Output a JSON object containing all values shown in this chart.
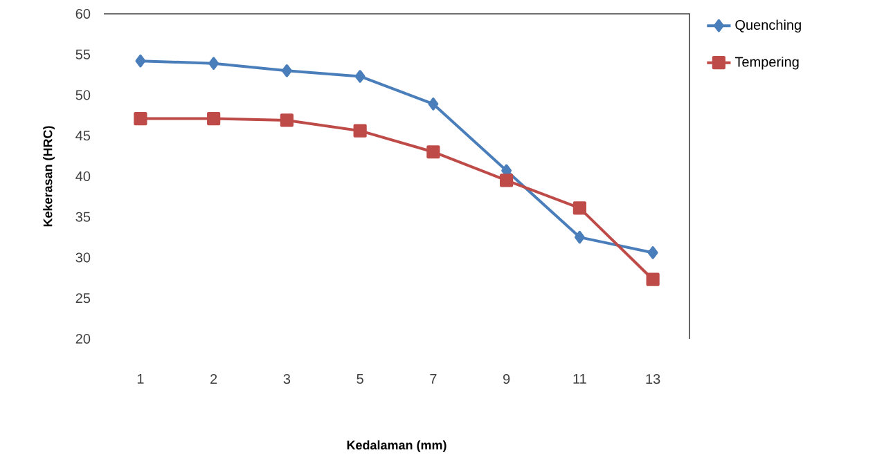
{
  "chart_data": {
    "type": "line",
    "xlabel": "Kedalaman (mm)",
    "ylabel": "Kekerasan (HRC)",
    "categories": [
      "1",
      "2",
      "3",
      "5",
      "7",
      "9",
      "11",
      "13"
    ],
    "series": [
      {
        "name": "Quenching",
        "color": "#4a7ebb",
        "marker": "diamond",
        "values": [
          54.2,
          53.9,
          53.0,
          52.3,
          48.9,
          40.7,
          32.5,
          30.6
        ]
      },
      {
        "name": "Tempering",
        "color": "#be4b48",
        "marker": "square",
        "values": [
          47.1,
          47.1,
          46.9,
          45.6,
          43.0,
          39.5,
          36.1,
          27.3
        ]
      }
    ],
    "ylim": [
      20,
      60
    ],
    "yticks": [
      20,
      25,
      30,
      35,
      40,
      45,
      50,
      55,
      60
    ],
    "legend": "right",
    "grid": false
  }
}
